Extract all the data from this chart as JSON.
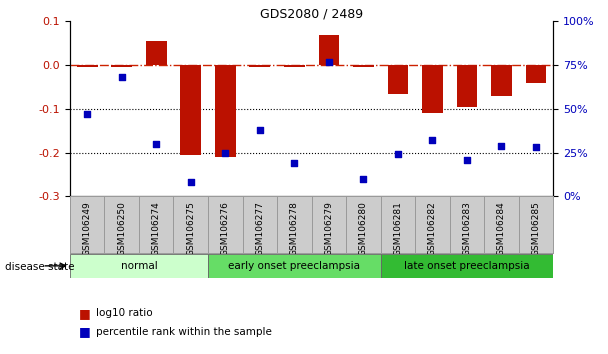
{
  "title": "GDS2080 / 2489",
  "samples": [
    "GSM106249",
    "GSM106250",
    "GSM106274",
    "GSM106275",
    "GSM106276",
    "GSM106277",
    "GSM106278",
    "GSM106279",
    "GSM106280",
    "GSM106281",
    "GSM106282",
    "GSM106283",
    "GSM106284",
    "GSM106285"
  ],
  "log10_ratio": [
    -0.005,
    -0.005,
    0.055,
    -0.205,
    -0.21,
    -0.005,
    -0.005,
    0.068,
    -0.005,
    -0.065,
    -0.11,
    -0.095,
    -0.07,
    -0.04
  ],
  "percentile_rank": [
    47,
    68,
    30,
    8,
    25,
    38,
    19,
    77,
    10,
    24,
    32,
    21,
    29,
    28
  ],
  "groups": [
    {
      "label": "normal",
      "start": 0,
      "end": 4,
      "color": "#ccffcc"
    },
    {
      "label": "early onset preeclampsia",
      "start": 4,
      "end": 9,
      "color": "#66dd66"
    },
    {
      "label": "late onset preeclampsia",
      "start": 9,
      "end": 14,
      "color": "#33bb33"
    }
  ],
  "ylim_left": [
    -0.3,
    0.1
  ],
  "ylim_right": [
    0,
    100
  ],
  "yticks_left": [
    -0.3,
    -0.2,
    -0.1,
    0.0,
    0.1
  ],
  "yticks_right": [
    0,
    25,
    50,
    75,
    100
  ],
  "bar_color": "#bb1100",
  "dot_color": "#0000bb",
  "zero_line_color": "#cc2200",
  "grid_color": "#000000",
  "background_color": "#ffffff",
  "tick_bg_color": "#cccccc",
  "legend_bar_label": "log10 ratio",
  "legend_dot_label": "percentile rank within the sample",
  "disease_state_label": "disease state"
}
